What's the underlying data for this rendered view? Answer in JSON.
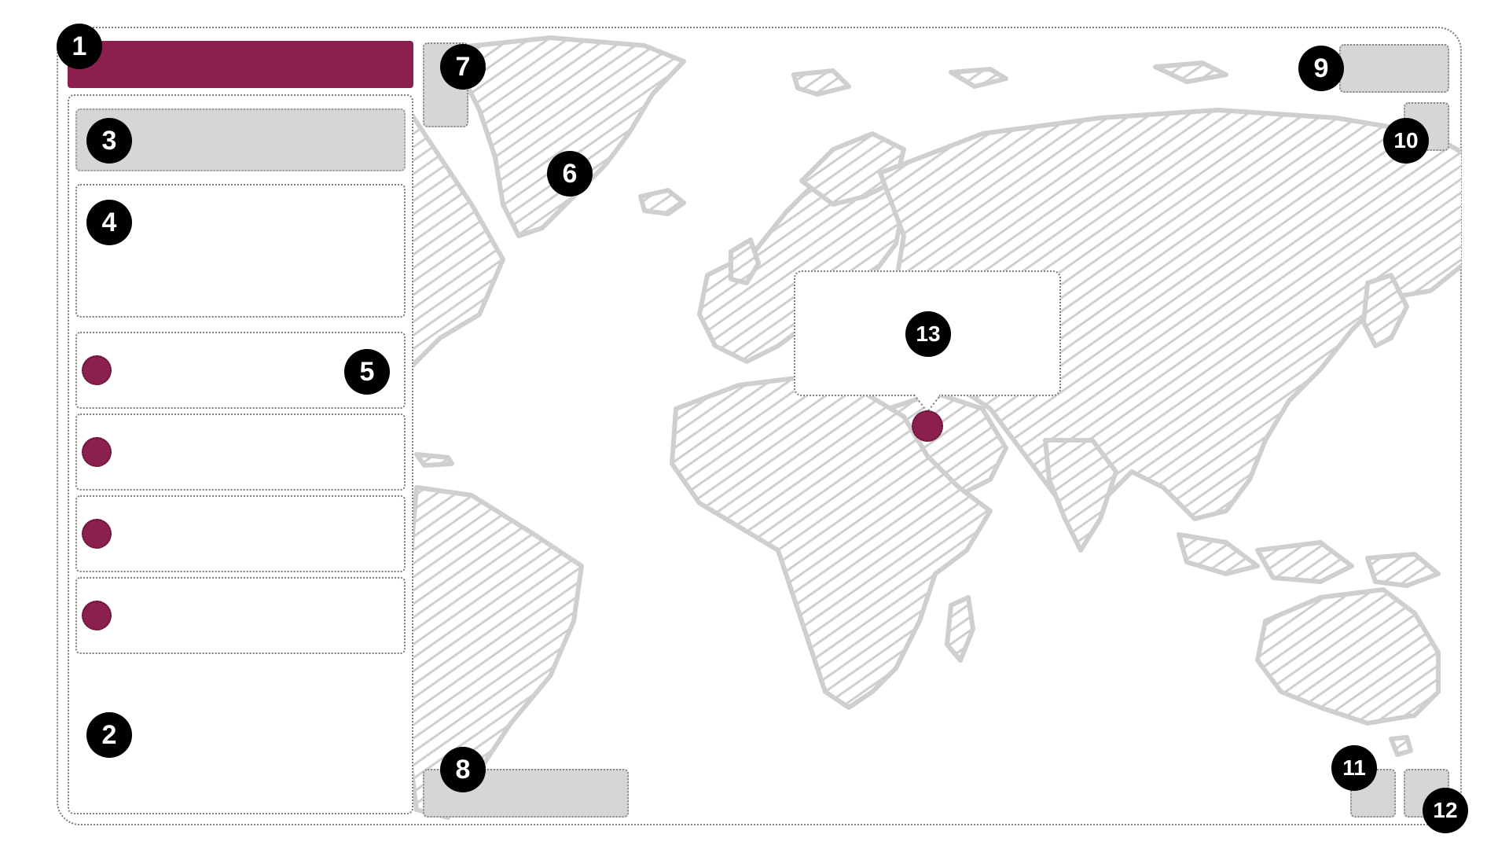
{
  "theme": {
    "accent": "#8b1f4e",
    "panel_fill": "#d6d6d6",
    "map_stroke": "#cfcfcf",
    "badge_fill": "#000000"
  },
  "badges": {
    "b1": "1",
    "b2": "2",
    "b3": "3",
    "b4": "4",
    "b5": "5",
    "b6": "6",
    "b7": "7",
    "b8": "8",
    "b9": "9",
    "b10": "10",
    "b11": "11",
    "b12": "12",
    "b13": "13"
  },
  "sidebar": {
    "list_items": [
      {
        "marker": "map-marker"
      },
      {
        "marker": "map-marker"
      },
      {
        "marker": "map-marker"
      },
      {
        "marker": "map-marker"
      }
    ]
  },
  "map": {
    "style": "hand-drawn hatched world map"
  }
}
